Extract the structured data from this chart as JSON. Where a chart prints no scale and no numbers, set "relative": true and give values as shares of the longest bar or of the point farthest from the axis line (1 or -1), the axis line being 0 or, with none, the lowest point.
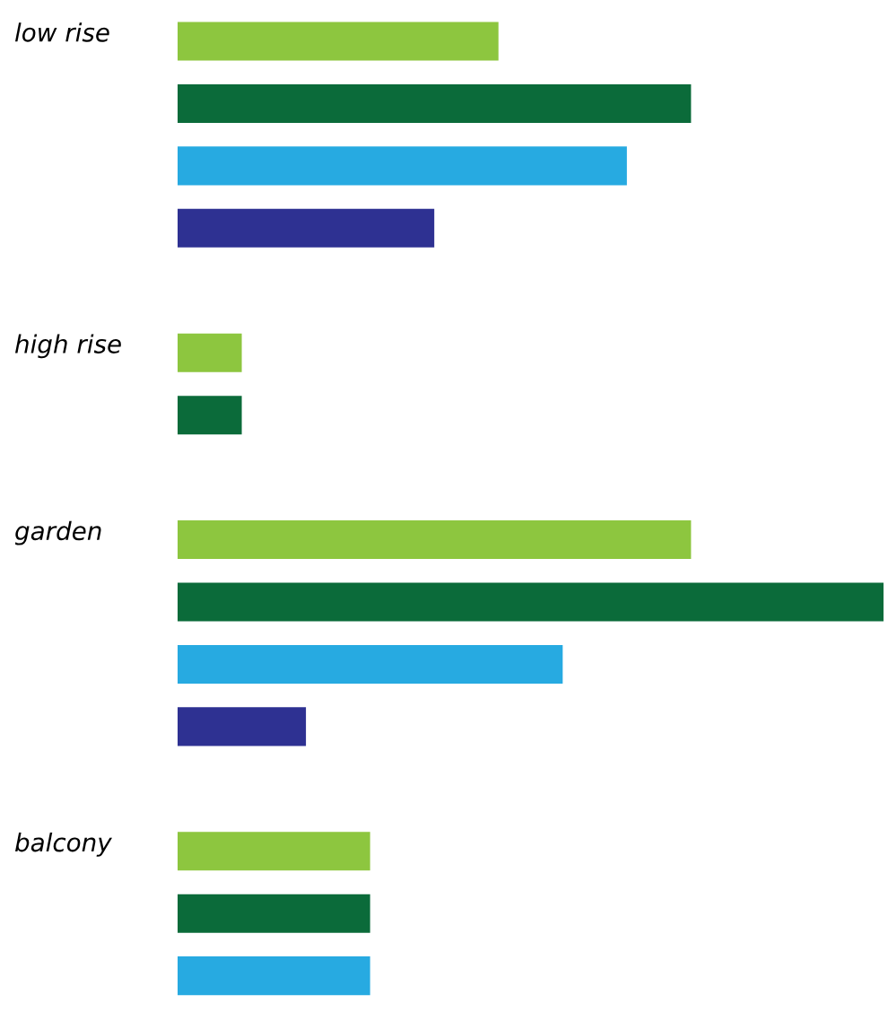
{
  "chart_data": {
    "type": "bar",
    "orientation": "horizontal",
    "relative": true,
    "categories": [
      "low rise",
      null,
      null,
      null,
      null,
      "high rise",
      null,
      null,
      "garden",
      null,
      null,
      null,
      null,
      "balcony",
      null,
      null
    ],
    "values": [
      0.4545,
      0.7273,
      0.6364,
      0.3636,
      null,
      0.0909,
      0.0909,
      null,
      0.7273,
      1,
      0.5455,
      0.1818,
      null,
      0.2727,
      0.2727,
      0.2727
    ],
    "colors": [
      "#8dc63f",
      "#0b6b3a",
      "#27aae1",
      "#2e3192",
      null,
      "#8dc63f",
      "#0b6b3a",
      null,
      "#8dc63f",
      "#0b6b3a",
      "#27aae1",
      "#2e3192",
      null,
      "#8dc63f",
      "#0b6b3a",
      "#27aae1"
    ]
  }
}
